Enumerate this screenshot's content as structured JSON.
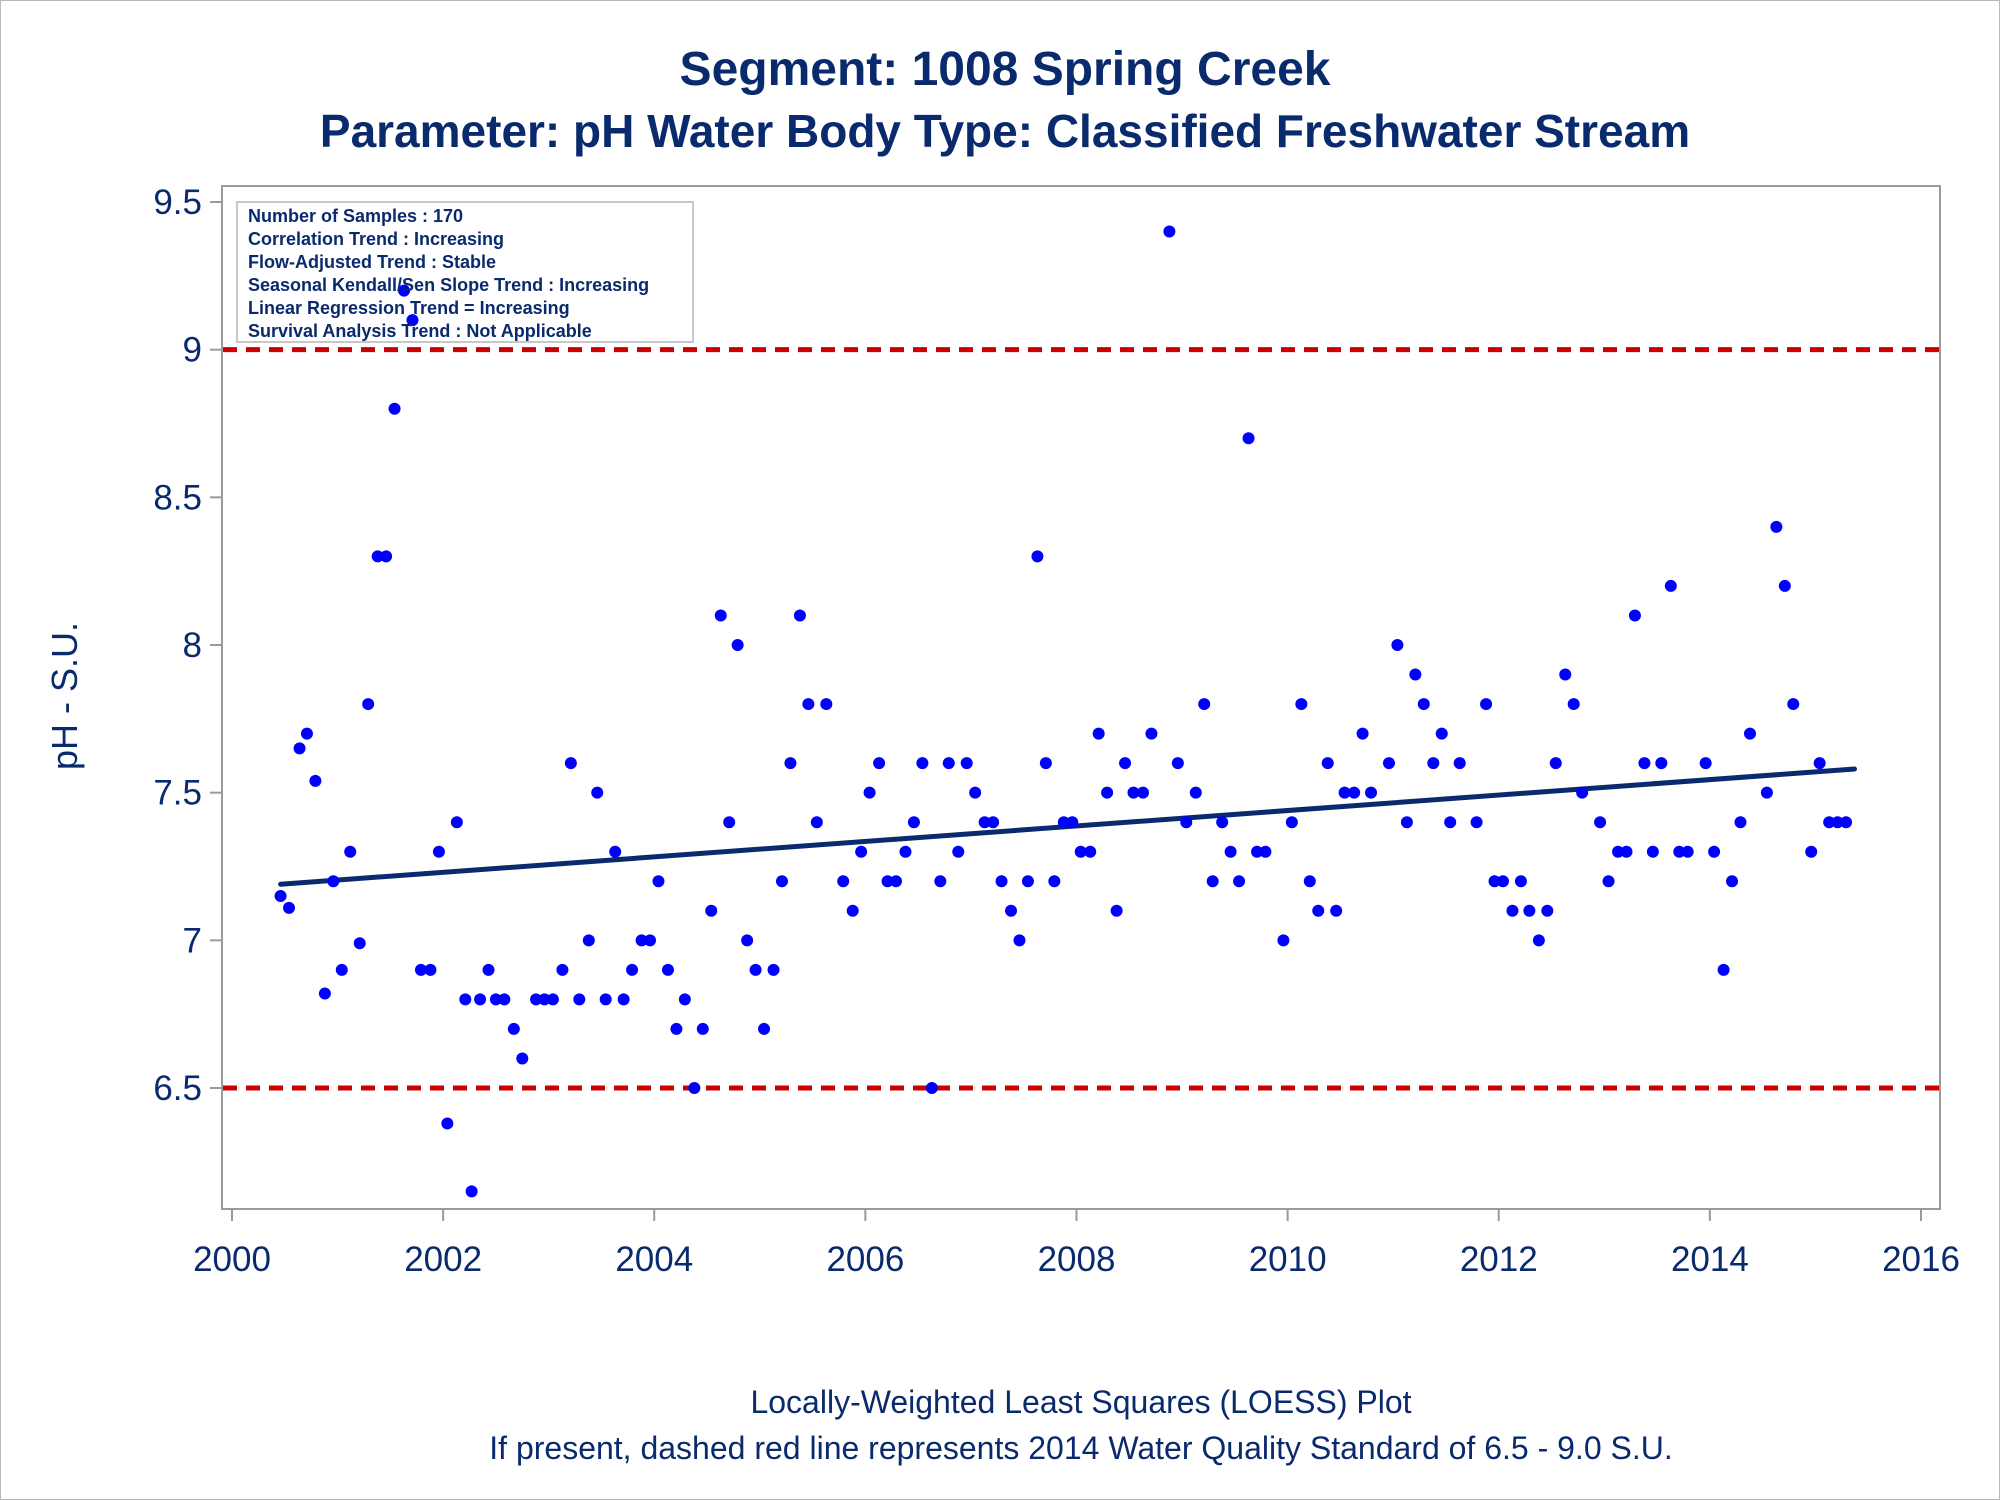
{
  "chart_data": {
    "type": "scatter",
    "title": "Segment: 1008  Spring Creek",
    "subtitle": "Parameter: pH   Water Body Type: Classified Freshwater Stream",
    "xlabel": "",
    "ylabel": "pH - S.U.",
    "xlim": [
      2000,
      2016
    ],
    "ylim": [
      6.15,
      9.55
    ],
    "x_ticks": [
      "2000",
      "2002",
      "2004",
      "2006",
      "2008",
      "2010",
      "2012",
      "2014",
      "2016"
    ],
    "x_tick_values": [
      2000,
      2002,
      2004,
      2006,
      2008,
      2010,
      2012,
      2014,
      2016
    ],
    "y_ticks": [
      "6.5",
      "7",
      "7.5",
      "8",
      "8.5",
      "9",
      "9.5"
    ],
    "y_tick_values": [
      6.5,
      7,
      7.5,
      8,
      8.5,
      9,
      9.5
    ],
    "stats_box": [
      "Number of Samples : 170",
      "Correlation Trend : Increasing",
      "Flow-Adjusted Trend : Stable",
      "Seasonal Kendall/Sen Slope Trend : Increasing",
      "Linear Regression Trend = Increasing",
      "Survival Analysis Trend : Not Applicable"
    ],
    "standards": [
      6.5,
      9.0
    ],
    "trend_line": {
      "x": [
        2000.46,
        2015.37
      ],
      "y": [
        7.19,
        7.58
      ]
    },
    "points": [
      [
        2000.46,
        7.15
      ],
      [
        2000.54,
        7.11
      ],
      [
        2000.64,
        7.65
      ],
      [
        2000.71,
        7.7
      ],
      [
        2000.79,
        7.54
      ],
      [
        2000.88,
        6.82
      ],
      [
        2000.96,
        7.2
      ],
      [
        2001.04,
        6.9
      ],
      [
        2001.12,
        7.3
      ],
      [
        2001.21,
        6.99
      ],
      [
        2001.29,
        7.8
      ],
      [
        2001.38,
        8.3
      ],
      [
        2001.46,
        8.3
      ],
      [
        2001.54,
        8.8
      ],
      [
        2001.63,
        9.2
      ],
      [
        2001.71,
        9.1
      ],
      [
        2001.79,
        6.9
      ],
      [
        2001.88,
        6.9
      ],
      [
        2001.96,
        7.3
      ],
      [
        2002.04,
        6.38
      ],
      [
        2002.13,
        7.4
      ],
      [
        2002.21,
        6.8
      ],
      [
        2002.27,
        6.15
      ],
      [
        2002.35,
        6.8
      ],
      [
        2002.43,
        6.9
      ],
      [
        2002.5,
        6.8
      ],
      [
        2002.58,
        6.8
      ],
      [
        2002.67,
        6.7
      ],
      [
        2002.75,
        6.6
      ],
      [
        2002.88,
        6.8
      ],
      [
        2002.96,
        6.8
      ],
      [
        2003.04,
        6.8
      ],
      [
        2003.13,
        6.9
      ],
      [
        2003.21,
        7.6
      ],
      [
        2003.29,
        6.8
      ],
      [
        2003.38,
        7.0
      ],
      [
        2003.46,
        7.5
      ],
      [
        2003.54,
        6.8
      ],
      [
        2003.63,
        7.3
      ],
      [
        2003.71,
        6.8
      ],
      [
        2003.79,
        6.9
      ],
      [
        2003.88,
        7.0
      ],
      [
        2003.96,
        7.0
      ],
      [
        2004.04,
        7.2
      ],
      [
        2004.13,
        6.9
      ],
      [
        2004.21,
        6.7
      ],
      [
        2004.29,
        6.8
      ],
      [
        2004.38,
        6.5
      ],
      [
        2004.46,
        6.7
      ],
      [
        2004.54,
        7.1
      ],
      [
        2004.63,
        8.1
      ],
      [
        2004.71,
        7.4
      ],
      [
        2004.79,
        8.0
      ],
      [
        2004.88,
        7.0
      ],
      [
        2004.96,
        6.9
      ],
      [
        2005.04,
        6.7
      ],
      [
        2005.13,
        6.9
      ],
      [
        2005.21,
        7.2
      ],
      [
        2005.29,
        7.6
      ],
      [
        2005.38,
        8.1
      ],
      [
        2005.46,
        7.8
      ],
      [
        2005.54,
        7.4
      ],
      [
        2005.63,
        7.8
      ],
      [
        2005.79,
        7.2
      ],
      [
        2005.88,
        7.1
      ],
      [
        2005.96,
        7.3
      ],
      [
        2006.04,
        7.5
      ],
      [
        2006.13,
        7.6
      ],
      [
        2006.21,
        7.2
      ],
      [
        2006.29,
        7.2
      ],
      [
        2006.38,
        7.3
      ],
      [
        2006.46,
        7.4
      ],
      [
        2006.54,
        7.6
      ],
      [
        2006.63,
        6.5
      ],
      [
        2006.71,
        7.2
      ],
      [
        2006.79,
        7.6
      ],
      [
        2006.88,
        7.3
      ],
      [
        2006.96,
        7.6
      ],
      [
        2007.04,
        7.5
      ],
      [
        2007.13,
        7.4
      ],
      [
        2007.21,
        7.4
      ],
      [
        2007.29,
        7.2
      ],
      [
        2007.38,
        7.1
      ],
      [
        2007.46,
        7.0
      ],
      [
        2007.54,
        7.2
      ],
      [
        2007.63,
        8.3
      ],
      [
        2007.71,
        7.6
      ],
      [
        2007.79,
        7.2
      ],
      [
        2007.88,
        7.4
      ],
      [
        2007.96,
        7.4
      ],
      [
        2008.04,
        7.3
      ],
      [
        2008.13,
        7.3
      ],
      [
        2008.21,
        7.7
      ],
      [
        2008.29,
        7.5
      ],
      [
        2008.38,
        7.1
      ],
      [
        2008.46,
        7.6
      ],
      [
        2008.54,
        7.5
      ],
      [
        2008.63,
        7.5
      ],
      [
        2008.71,
        7.7
      ],
      [
        2008.88,
        9.4
      ],
      [
        2008.96,
        7.6
      ],
      [
        2009.04,
        7.4
      ],
      [
        2009.13,
        7.5
      ],
      [
        2009.21,
        7.8
      ],
      [
        2009.29,
        7.2
      ],
      [
        2009.38,
        7.4
      ],
      [
        2009.46,
        7.3
      ],
      [
        2009.54,
        7.2
      ],
      [
        2009.63,
        8.7
      ],
      [
        2009.71,
        7.3
      ],
      [
        2009.79,
        7.3
      ],
      [
        2009.96,
        7.0
      ],
      [
        2010.04,
        7.4
      ],
      [
        2010.13,
        7.8
      ],
      [
        2010.21,
        7.2
      ],
      [
        2010.29,
        7.1
      ],
      [
        2010.38,
        7.6
      ],
      [
        2010.46,
        7.1
      ],
      [
        2010.54,
        7.5
      ],
      [
        2010.63,
        7.5
      ],
      [
        2010.71,
        7.7
      ],
      [
        2010.79,
        7.5
      ],
      [
        2010.96,
        7.6
      ],
      [
        2011.04,
        8.0
      ],
      [
        2011.13,
        7.4
      ],
      [
        2011.21,
        7.9
      ],
      [
        2011.29,
        7.8
      ],
      [
        2011.38,
        7.6
      ],
      [
        2011.46,
        7.7
      ],
      [
        2011.54,
        7.4
      ],
      [
        2011.63,
        7.6
      ],
      [
        2011.79,
        7.4
      ],
      [
        2011.88,
        7.8
      ],
      [
        2011.96,
        7.2
      ],
      [
        2012.04,
        7.2
      ],
      [
        2012.13,
        7.1
      ],
      [
        2012.21,
        7.2
      ],
      [
        2012.29,
        7.1
      ],
      [
        2012.38,
        7.0
      ],
      [
        2012.46,
        7.1
      ],
      [
        2012.54,
        7.6
      ],
      [
        2012.63,
        7.9
      ],
      [
        2012.71,
        7.8
      ],
      [
        2012.79,
        7.5
      ],
      [
        2012.96,
        7.4
      ],
      [
        2013.04,
        7.2
      ],
      [
        2013.13,
        7.3
      ],
      [
        2013.21,
        7.3
      ],
      [
        2013.29,
        8.1
      ],
      [
        2013.38,
        7.6
      ],
      [
        2013.46,
        7.3
      ],
      [
        2013.54,
        7.6
      ],
      [
        2013.63,
        8.2
      ],
      [
        2013.71,
        7.3
      ],
      [
        2013.79,
        7.3
      ],
      [
        2013.96,
        7.6
      ],
      [
        2014.04,
        7.3
      ],
      [
        2014.13,
        6.9
      ],
      [
        2014.21,
        7.2
      ],
      [
        2014.29,
        7.4
      ],
      [
        2014.38,
        7.7
      ],
      [
        2014.54,
        7.5
      ],
      [
        2014.63,
        8.4
      ],
      [
        2014.71,
        8.2
      ],
      [
        2014.79,
        7.8
      ],
      [
        2014.96,
        7.3
      ],
      [
        2015.04,
        7.6
      ],
      [
        2015.13,
        7.4
      ],
      [
        2015.21,
        7.4
      ],
      [
        2015.29,
        7.4
      ]
    ],
    "colors": {
      "points": "#0000ff",
      "trend": "#0a2a6e",
      "standard": "#cc0000",
      "text": "#0a2a6e"
    },
    "footnotes": [
      "Locally-Weighted Least Squares (LOESS) Plot",
      "If present, dashed red line represents 2014 Water Quality Standard of 6.5 - 9.0 S.U."
    ]
  }
}
